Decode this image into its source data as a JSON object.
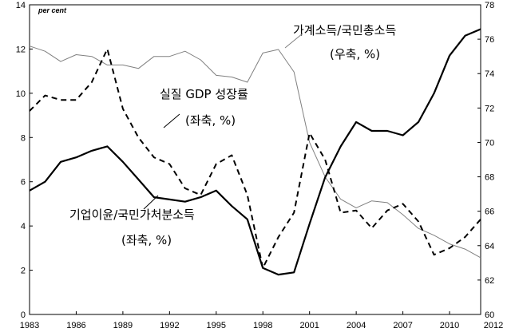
{
  "chart_data": {
    "type": "line",
    "unit_label": "per cent",
    "x": [
      1983,
      1984,
      1985,
      1986,
      1987,
      1988,
      1989,
      1990,
      1991,
      1992,
      1993,
      1994,
      1995,
      1996,
      1997,
      1998,
      1999,
      2000,
      2001,
      2002,
      2003,
      2004,
      2005,
      2006,
      2007,
      2008,
      2009,
      2010,
      2011,
      2012
    ],
    "xlim": [
      1983,
      2012
    ],
    "x_ticks": [
      "1983",
      "1986",
      "1989",
      "1992",
      "1995",
      "1998",
      "2001",
      "2004",
      "2007",
      "2010",
      "2012"
    ],
    "ylim_left": [
      0,
      14
    ],
    "y_ticks_left": [
      "0",
      "2",
      "4",
      "6",
      "8",
      "10",
      "12",
      "14"
    ],
    "ylim_right": [
      60,
      78
    ],
    "y_ticks_right": [
      "60",
      "62",
      "64",
      "66",
      "68",
      "70",
      "72",
      "74",
      "76",
      "78"
    ],
    "grid": false,
    "series": [
      {
        "name": "실질 GDP 성장률",
        "annotation_line1": "실질 GDP 성장률",
        "annotation_line2": "(좌축, %)",
        "axis": "left",
        "style": "dashed",
        "color": "#000000",
        "values": [
          9.2,
          9.9,
          9.7,
          9.7,
          10.5,
          12.0,
          9.3,
          8.0,
          7.1,
          6.8,
          5.7,
          5.4,
          6.8,
          7.2,
          5.4,
          2.1,
          3.5,
          4.6,
          8.2,
          7.0,
          4.6,
          4.7,
          3.9,
          4.7,
          5.0,
          4.2,
          2.7,
          3.0,
          3.5,
          4.3
        ]
      },
      {
        "name": "가계소득/국민총소득",
        "annotation_line1": "가계소득/국민총소득",
        "annotation_line2": "(우축, %)",
        "axis": "right",
        "style": "solid-thin",
        "color": "#808080",
        "values": [
          75.6,
          75.3,
          74.7,
          75.1,
          75.0,
          74.5,
          74.5,
          74.3,
          75.0,
          75.0,
          75.3,
          74.8,
          73.9,
          73.8,
          73.5,
          75.2,
          75.4,
          74.1,
          70.0,
          68.0,
          66.7,
          66.2,
          66.6,
          66.5,
          65.8,
          65.0,
          64.6,
          64.1,
          63.8,
          63.3
        ]
      },
      {
        "name": "기업이윤/국민가처분소득",
        "annotation_line1": "기업이윤/국민가처분소득",
        "annotation_line2": "(좌축, %)",
        "axis": "left",
        "style": "solid-thick",
        "color": "#000000",
        "values": [
          5.6,
          6.0,
          6.9,
          7.1,
          7.4,
          7.6,
          6.9,
          6.1,
          5.3,
          5.2,
          5.1,
          5.3,
          5.6,
          4.9,
          4.3,
          2.1,
          1.8,
          1.9,
          4.1,
          6.2,
          7.6,
          8.7,
          8.3,
          8.3,
          8.1,
          8.7,
          10.0,
          11.7,
          12.6,
          12.9
        ]
      }
    ]
  }
}
